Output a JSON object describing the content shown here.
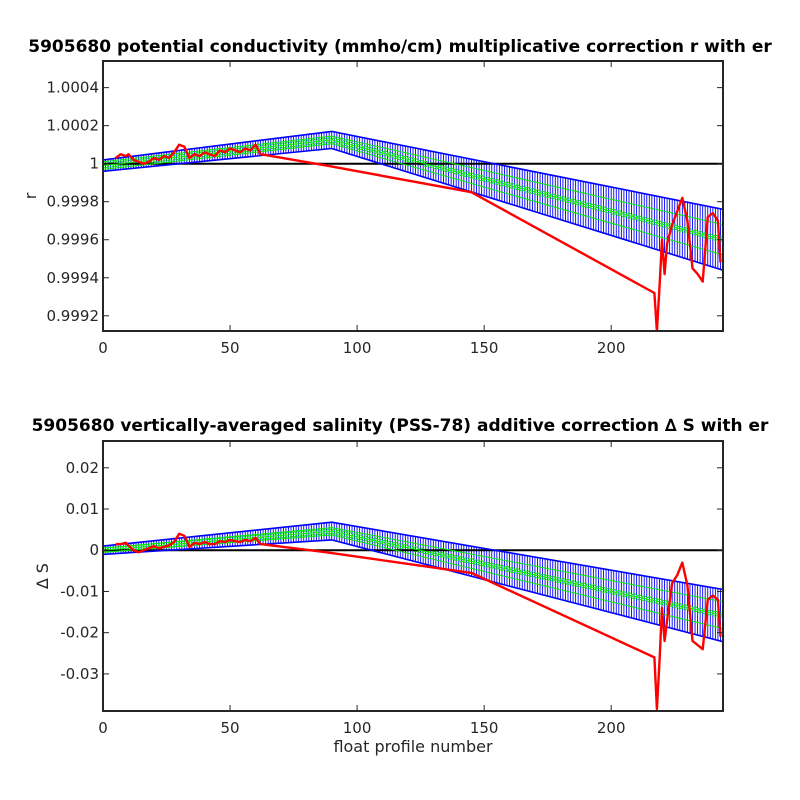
{
  "chart_data": [
    {
      "type": "line",
      "title": "5905680 potential conductivity (mmho/cm) multiplicative correction r with er",
      "xlabel": "",
      "ylabel": "r",
      "xlim": [
        0,
        244
      ],
      "ylim": [
        0.99912,
        1.00054
      ],
      "x_ticks": [
        0,
        50,
        100,
        150,
        200
      ],
      "y_ticks": [
        0.9992,
        0.9994,
        0.9996,
        0.9998,
        1,
        1.0002,
        1.0004
      ],
      "y_tick_labels": [
        "0.9992",
        "0.9994",
        "0.9996",
        "0.9998",
        "1",
        "1.0002",
        "1.0004"
      ],
      "grid": false,
      "series": [
        {
          "color": "#000000",
          "style": "reference",
          "x": [
            0,
            244
          ],
          "y": [
            1,
            1
          ]
        },
        {
          "color": "#0000ff",
          "style": "error-upper",
          "x": [
            0,
            90,
            244
          ],
          "y": [
            1.00002,
            1.00017,
            0.99976
          ]
        },
        {
          "color": "#0000ff",
          "style": "error-lower",
          "x": [
            0,
            90,
            244
          ],
          "y": [
            0.99996,
            1.00008,
            0.99944
          ]
        },
        {
          "color": "#00ee00",
          "style": "fit-band-1",
          "x": [
            0,
            90,
            244
          ],
          "y": [
            1.00001,
            1.000145,
            0.99968
          ]
        },
        {
          "color": "#00ee00",
          "style": "fit-center",
          "x": [
            0,
            90,
            244
          ],
          "y": [
            0.99999,
            1.000125,
            0.9996
          ]
        },
        {
          "color": "#00ee00",
          "style": "fit-band-2",
          "x": [
            0,
            90,
            244
          ],
          "y": [
            0.99997,
            1.000105,
            0.99952
          ]
        },
        {
          "color": "#ff0000",
          "style": "profile-ratio",
          "x": [
            5,
            7,
            9,
            10,
            12,
            14,
            16,
            18,
            20,
            22,
            24,
            26,
            28,
            30,
            32,
            34,
            36,
            38,
            40,
            42,
            44,
            46,
            48,
            50,
            52,
            54,
            56,
            58,
            60,
            62,
            88,
            145,
            217,
            218,
            219,
            220,
            221,
            222,
            224,
            226,
            228,
            230,
            232,
            234,
            236,
            238,
            240,
            242,
            243
          ],
          "y": [
            1.00003,
            1.00005,
            1.00004,
            1.00005,
            1.00002,
            1.00001,
            1.0,
            1.00001,
            1.00003,
            1.00002,
            1.00004,
            1.00003,
            1.00006,
            1.0001,
            1.00009,
            1.00003,
            1.00005,
            1.00004,
            1.00006,
            1.00005,
            1.00004,
            1.00007,
            1.00006,
            1.00008,
            1.00007,
            1.00006,
            1.00008,
            1.00007,
            1.0001,
            1.00005,
            0.99999,
            0.99985,
            0.99932,
            0.99912,
            0.99935,
            0.9996,
            0.99942,
            0.99958,
            0.99968,
            0.99975,
            0.99982,
            0.9997,
            0.99945,
            0.99942,
            0.99938,
            0.99972,
            0.99974,
            0.9997,
            0.99948
          ]
        }
      ]
    },
    {
      "type": "line",
      "title": "5905680 vertically-averaged salinity (PSS-78) additive correction ∆ S with er",
      "xlabel": "float profile number",
      "ylabel": "∆ S",
      "xlim": [
        0,
        244
      ],
      "ylim": [
        -0.039,
        0.0265
      ],
      "x_ticks": [
        0,
        50,
        100,
        150,
        200
      ],
      "y_ticks": [
        -0.03,
        -0.02,
        -0.01,
        0,
        0.01,
        0.02
      ],
      "y_tick_labels": [
        "-0.03",
        "-0.02",
        "-0.01",
        "0",
        "0.01",
        "0.02"
      ],
      "grid": false,
      "series": [
        {
          "color": "#000000",
          "style": "reference",
          "x": [
            0,
            244
          ],
          "y": [
            0,
            0
          ]
        },
        {
          "color": "#0000ff",
          "style": "error-upper",
          "x": [
            0,
            90,
            244
          ],
          "y": [
            0.001,
            0.0068,
            -0.0095
          ]
        },
        {
          "color": "#0000ff",
          "style": "error-lower",
          "x": [
            0,
            90,
            244
          ],
          "y": [
            -0.001,
            0.0025,
            -0.0222
          ]
        },
        {
          "color": "#00ee00",
          "style": "fit-band-1",
          "x": [
            0,
            90,
            244
          ],
          "y": [
            0.0005,
            0.0055,
            -0.0125
          ]
        },
        {
          "color": "#00ee00",
          "style": "fit-center",
          "x": [
            0,
            90,
            244
          ],
          "y": [
            0.0,
            0.0046,
            -0.0158
          ]
        },
        {
          "color": "#00ee00",
          "style": "fit-band-2",
          "x": [
            0,
            90,
            244
          ],
          "y": [
            -0.0005,
            0.0037,
            -0.019
          ]
        },
        {
          "color": "#ff0000",
          "style": "profile-correction",
          "x": [
            5,
            7,
            9,
            10,
            12,
            14,
            16,
            18,
            20,
            22,
            24,
            26,
            28,
            30,
            32,
            34,
            36,
            38,
            40,
            42,
            44,
            46,
            48,
            50,
            52,
            54,
            56,
            58,
            60,
            62,
            88,
            145,
            217,
            218,
            219,
            220,
            221,
            222,
            224,
            226,
            228,
            230,
            232,
            234,
            236,
            238,
            240,
            242,
            243
          ],
          "y": [
            0.0015,
            0.0015,
            0.0018,
            0.0012,
            0.0,
            -0.0005,
            0.0,
            0.0005,
            0.001,
            0.0005,
            0.0008,
            0.0012,
            0.002,
            0.004,
            0.0035,
            0.0008,
            0.0018,
            0.0015,
            0.002,
            0.0015,
            0.0015,
            0.0022,
            0.002,
            0.0025,
            0.0022,
            0.002,
            0.0025,
            0.0022,
            0.003,
            0.0015,
            -0.0005,
            -0.0055,
            -0.026,
            -0.0385,
            -0.027,
            -0.014,
            -0.022,
            -0.017,
            -0.008,
            -0.006,
            -0.003,
            -0.0085,
            -0.022,
            -0.023,
            -0.024,
            -0.012,
            -0.011,
            -0.012,
            -0.021
          ]
        }
      ]
    }
  ]
}
